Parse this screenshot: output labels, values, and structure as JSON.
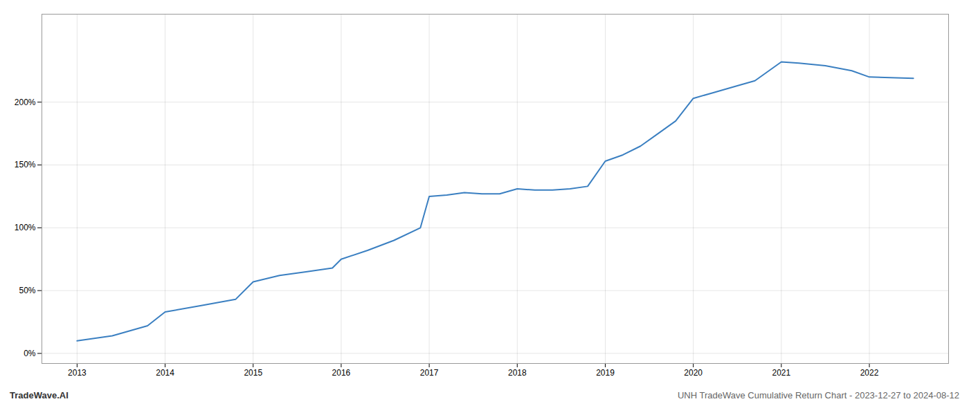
{
  "chart_data": {
    "type": "line",
    "title": "UNH TradeWave Cumulative Return Chart - 2023-12-27 to 2024-08-12",
    "annotations": [
      "TradeWave.AI"
    ],
    "x": [
      2013.0,
      2013.4,
      2013.8,
      2014.0,
      2014.4,
      2014.8,
      2015.0,
      2015.3,
      2015.6,
      2015.9,
      2016.0,
      2016.3,
      2016.6,
      2016.9,
      2017.0,
      2017.2,
      2017.4,
      2017.6,
      2017.8,
      2018.0,
      2018.2,
      2018.4,
      2018.6,
      2018.8,
      2019.0,
      2019.2,
      2019.4,
      2019.6,
      2019.8,
      2020.0,
      2020.2,
      2020.5,
      2020.7,
      2021.0,
      2021.2,
      2021.5,
      2021.8,
      2022.0,
      2022.5
    ],
    "values": [
      10,
      14,
      22,
      33,
      38,
      43,
      57,
      62,
      65,
      68,
      75,
      82,
      90,
      100,
      125,
      126,
      128,
      127,
      127,
      131,
      130,
      130,
      131,
      133,
      153,
      158,
      165,
      175,
      185,
      203,
      207,
      213,
      217,
      232,
      231,
      229,
      225,
      220,
      219
    ],
    "color": "#3a7fc1",
    "xlim": [
      2012.6,
      2022.9
    ],
    "ylim": [
      -8,
      270
    ],
    "xticks": [
      2013,
      2014,
      2015,
      2016,
      2017,
      2018,
      2019,
      2020,
      2021,
      2022
    ],
    "yticks": [
      {
        "value": 0,
        "label": "0%"
      },
      {
        "value": 50,
        "label": "50%"
      },
      {
        "value": 100,
        "label": "100%"
      },
      {
        "value": 150,
        "label": "150%"
      },
      {
        "value": 200,
        "label": "200%"
      }
    ],
    "grid": true
  }
}
